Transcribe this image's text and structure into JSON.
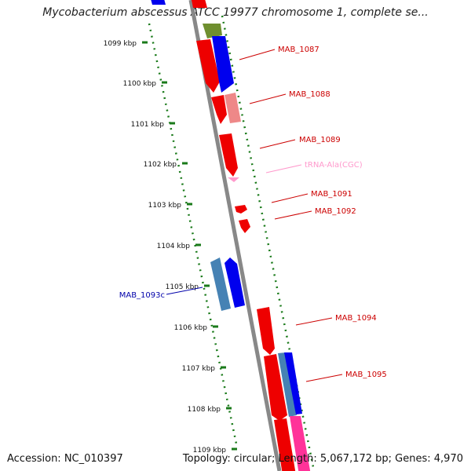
{
  "title": "Mycobacterium abscessus ATCC 19977 chromosome 1, complete se...",
  "footer": {
    "accession": "Accession: NC_010397",
    "topology": "Topology: circular; Length: 5,067,172 bp; Genes: 4,970"
  },
  "colors": {
    "backbone": "#888888",
    "ruler_ticks": "#1a7a1a",
    "forward_gene": "#0000ee",
    "reverse_gene": "#ee0000",
    "pink_gene": "#ee8888",
    "rna": "#ff99cc",
    "olive_gene": "#6f8f2f",
    "steelblue_gene": "#4682b4",
    "magenta_gene": "#ff3399",
    "left_label": "#0000aa",
    "right_label": "#cc0000"
  },
  "ruler": [
    {
      "label": "1099 kbp"
    },
    {
      "label": "1100 kbp"
    },
    {
      "label": "1101 kbp"
    },
    {
      "label": "1102 kbp"
    },
    {
      "label": "1103 kbp"
    },
    {
      "label": "1104 kbp"
    },
    {
      "label": "1105 kbp"
    },
    {
      "label": "1106 kbp"
    },
    {
      "label": "1107 kbp"
    },
    {
      "label": "1108 kbp"
    },
    {
      "label": "1109 kbp"
    }
  ],
  "gene_labels": [
    {
      "text": "MAB_1087",
      "color": "#cc0000"
    },
    {
      "text": "MAB_1088",
      "color": "#cc0000"
    },
    {
      "text": "MAB_1089",
      "color": "#cc0000"
    },
    {
      "text": "tRNA-Ala(CGC)",
      "color": "#ff99cc"
    },
    {
      "text": "MAB_1091",
      "color": "#cc0000"
    },
    {
      "text": "MAB_1092",
      "color": "#cc0000"
    },
    {
      "text": "MAB_1093c",
      "color": "#0000aa"
    },
    {
      "text": "MAB_1094",
      "color": "#cc0000"
    },
    {
      "text": "MAB_1095",
      "color": "#cc0000"
    }
  ]
}
